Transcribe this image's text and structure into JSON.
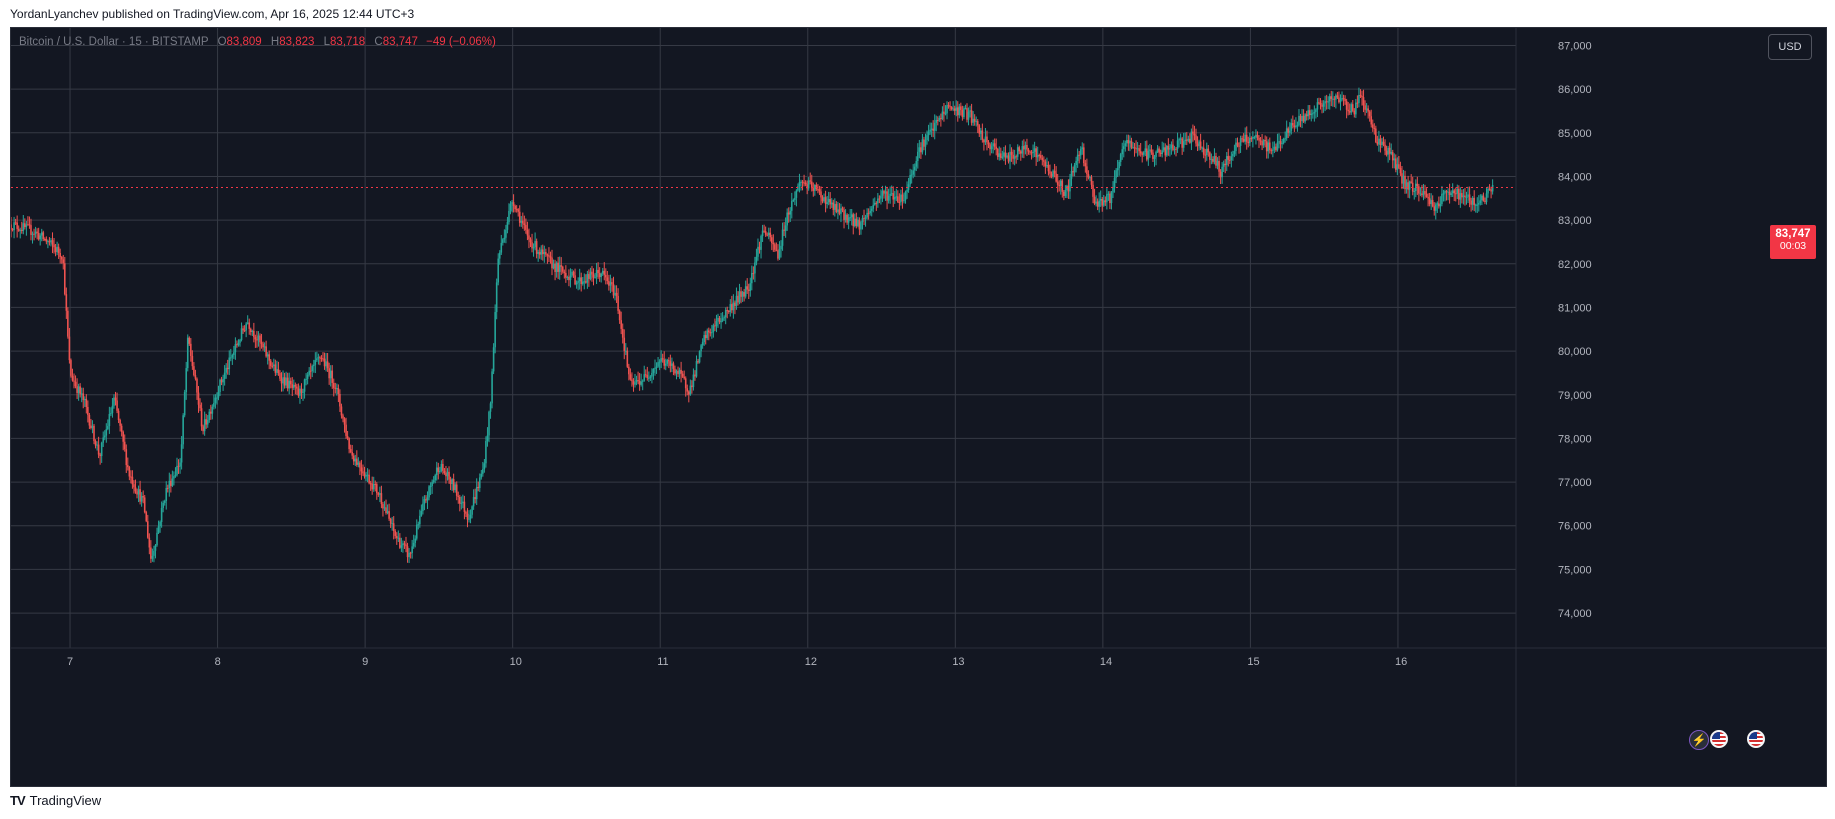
{
  "header": {
    "publish_text": "YordanLyanchev published on TradingView.com, Apr 16, 2025 12:44 UTC+3"
  },
  "legend": {
    "symbol": "Bitcoin / U.S. Dollar · 15 · BITSTAMP",
    "open_label": "O",
    "open": "83,809",
    "high_label": "H",
    "high": "83,823",
    "low_label": "L",
    "low": "83,718",
    "close_label": "C",
    "close": "83,747",
    "change": "−49 (−0.06%)"
  },
  "currency_button": "USD",
  "price_tag": {
    "price": "83,747",
    "countdown": "00:03"
  },
  "footer": {
    "brand": "TradingView",
    "logo_mark": "TV"
  },
  "colors": {
    "background": "#131722",
    "up": "#26a69a",
    "down": "#ef5350",
    "grid": "#363a45",
    "price_line": "#f23645"
  },
  "icons": [
    "lightning-event-icon",
    "us-flag-icon",
    "us-flag-icon"
  ],
  "chart_data": {
    "type": "candlestick",
    "title": "",
    "xlabel": "",
    "ylabel": "",
    "y_axis_position": "right",
    "ylim": [
      73200,
      87400
    ],
    "y_ticks": [
      74000,
      75000,
      76000,
      77000,
      78000,
      79000,
      80000,
      81000,
      82000,
      83000,
      84000,
      85000,
      86000,
      87000
    ],
    "y_tick_labels": [
      "74,000",
      "75,000",
      "76,000",
      "77,000",
      "78,000",
      "79,000",
      "80,000",
      "81,000",
      "82,000",
      "83,000",
      "84,000",
      "85,000",
      "86,000",
      "87,000"
    ],
    "x_range_days": [
      6.6,
      16.8
    ],
    "x_ticks": [
      7,
      8,
      9,
      10,
      11,
      12,
      13,
      14,
      15,
      16
    ],
    "x_tick_labels": [
      "7",
      "8",
      "9",
      "10",
      "11",
      "12",
      "13",
      "14",
      "15",
      "16"
    ],
    "grid": true,
    "current_price": 83747,
    "price_path": [
      [
        6.6,
        82900
      ],
      [
        6.75,
        82750
      ],
      [
        6.85,
        82500
      ],
      [
        6.95,
        82200
      ],
      [
        7.0,
        79500
      ],
      [
        7.1,
        78800
      ],
      [
        7.2,
        77600
      ],
      [
        7.3,
        78900
      ],
      [
        7.4,
        77200
      ],
      [
        7.5,
        76500
      ],
      [
        7.55,
        75200
      ],
      [
        7.65,
        76800
      ],
      [
        7.75,
        77500
      ],
      [
        7.8,
        80300
      ],
      [
        7.9,
        78200
      ],
      [
        8.0,
        79100
      ],
      [
        8.1,
        79900
      ],
      [
        8.2,
        80700
      ],
      [
        8.3,
        80100
      ],
      [
        8.4,
        79500
      ],
      [
        8.55,
        79000
      ],
      [
        8.7,
        79900
      ],
      [
        8.8,
        79200
      ],
      [
        8.9,
        77700
      ],
      [
        9.0,
        77200
      ],
      [
        9.1,
        76700
      ],
      [
        9.2,
        75800
      ],
      [
        9.3,
        75300
      ],
      [
        9.4,
        76500
      ],
      [
        9.5,
        77400
      ],
      [
        9.6,
        76900
      ],
      [
        9.7,
        76200
      ],
      [
        9.8,
        77300
      ],
      [
        9.85,
        78800
      ],
      [
        9.9,
        82100
      ],
      [
        10.0,
        83500
      ],
      [
        10.1,
        82600
      ],
      [
        10.2,
        82200
      ],
      [
        10.3,
        81900
      ],
      [
        10.45,
        81600
      ],
      [
        10.6,
        81800
      ],
      [
        10.7,
        81300
      ],
      [
        10.8,
        79200
      ],
      [
        10.9,
        79400
      ],
      [
        11.0,
        79800
      ],
      [
        11.1,
        79600
      ],
      [
        11.2,
        79100
      ],
      [
        11.3,
        80300
      ],
      [
        11.45,
        80900
      ],
      [
        11.6,
        81500
      ],
      [
        11.7,
        82800
      ],
      [
        11.8,
        82200
      ],
      [
        11.85,
        83000
      ],
      [
        11.95,
        83900
      ],
      [
        12.05,
        83700
      ],
      [
        12.2,
        83200
      ],
      [
        12.35,
        82900
      ],
      [
        12.5,
        83600
      ],
      [
        12.65,
        83500
      ],
      [
        12.75,
        84600
      ],
      [
        12.85,
        85100
      ],
      [
        12.95,
        85600
      ],
      [
        13.1,
        85400
      ],
      [
        13.2,
        84800
      ],
      [
        13.35,
        84400
      ],
      [
        13.5,
        84700
      ],
      [
        13.65,
        84100
      ],
      [
        13.75,
        83600
      ],
      [
        13.85,
        84700
      ],
      [
        13.95,
        83400
      ],
      [
        14.05,
        83500
      ],
      [
        14.15,
        84800
      ],
      [
        14.3,
        84500
      ],
      [
        14.45,
        84600
      ],
      [
        14.6,
        84900
      ],
      [
        14.75,
        84400
      ],
      [
        14.8,
        84100
      ],
      [
        14.9,
        84700
      ],
      [
        15.0,
        84900
      ],
      [
        15.15,
        84600
      ],
      [
        15.3,
        85200
      ],
      [
        15.45,
        85600
      ],
      [
        15.6,
        85800
      ],
      [
        15.7,
        85500
      ],
      [
        15.75,
        85900
      ],
      [
        15.85,
        84900
      ],
      [
        15.95,
        84500
      ],
      [
        16.05,
        83800
      ],
      [
        16.15,
        83700
      ],
      [
        16.25,
        83300
      ],
      [
        16.35,
        83700
      ],
      [
        16.45,
        83500
      ],
      [
        16.55,
        83400
      ],
      [
        16.65,
        83747
      ]
    ]
  }
}
